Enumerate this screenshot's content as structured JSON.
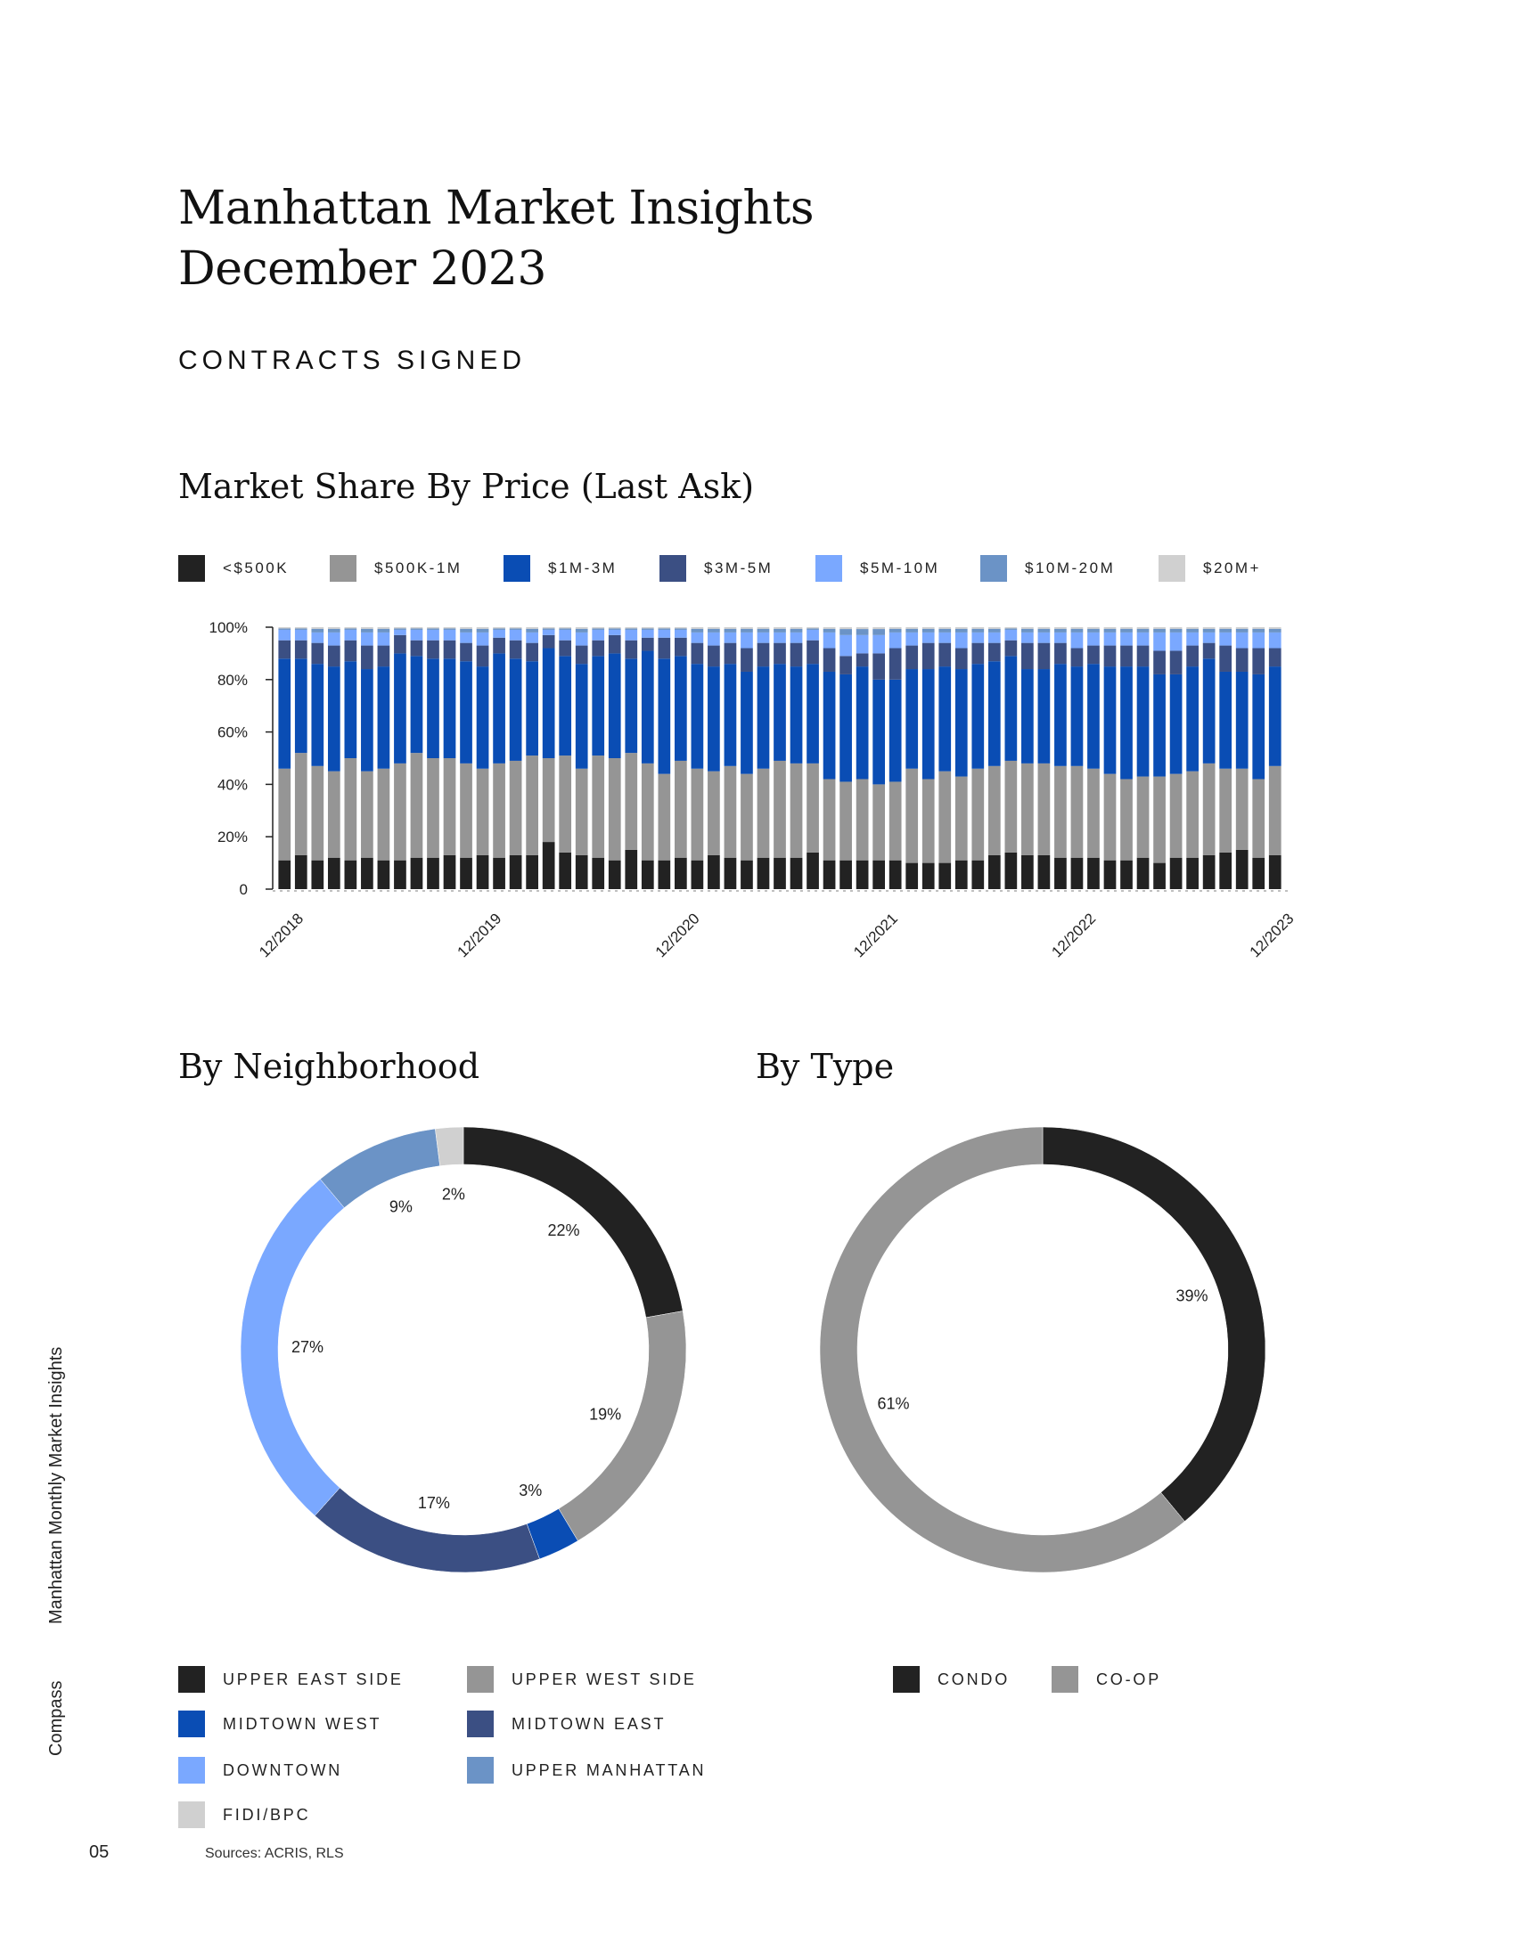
{
  "header": {
    "title_line1": "Manhattan Market Insights",
    "title_line2": "December 2023",
    "section": "CONTRACTS SIGNED"
  },
  "price_legend": [
    {
      "label": "<$500K",
      "color": "#222222"
    },
    {
      "label": "$500K-1M",
      "color": "#959595"
    },
    {
      "label": "$1M-3M",
      "color": "#0a4db4"
    },
    {
      "label": "$3M-5M",
      "color": "#3b4f83"
    },
    {
      "label": "$5M-10M",
      "color": "#7aa8ff"
    },
    {
      "label": "$10M-20M",
      "color": "#6b93c6"
    },
    {
      "label": "$20M+",
      "color": "#d0d0d0"
    }
  ],
  "neighborhood_legend": [
    {
      "label": "UPPER EAST SIDE",
      "color": "#222222"
    },
    {
      "label": "UPPER WEST SIDE",
      "color": "#959595"
    },
    {
      "label": "MIDTOWN WEST",
      "color": "#0a4db4"
    },
    {
      "label": "MIDTOWN EAST",
      "color": "#3b4f83"
    },
    {
      "label": "DOWNTOWN",
      "color": "#7aa8ff"
    },
    {
      "label": "UPPER MANHATTAN",
      "color": "#6b93c6"
    },
    {
      "label": "FIDI/BPC",
      "color": "#d0d0d0"
    }
  ],
  "type_legend": [
    {
      "label": "CONDO",
      "color": "#222222"
    },
    {
      "label": "CO-OP",
      "color": "#959595"
    }
  ],
  "sidebar": {
    "publication": "Manhattan Monthly Market Insights",
    "brand": "Compass"
  },
  "footer": {
    "page_number": "05",
    "sources": "Sources: ACRIS, RLS"
  },
  "chart_data": [
    {
      "type": "bar",
      "stacked": true,
      "title": "Market Share By Price (Last Ask)",
      "ylim": [
        0,
        100
      ],
      "y_ticks": [
        "0",
        "20%",
        "40%",
        "60%",
        "80%",
        "100%"
      ],
      "x_tick_labels": [
        "12/2018",
        "12/2019",
        "12/2020",
        "12/2021",
        "12/2022",
        "12/2023"
      ],
      "x_tick_positions": [
        0,
        12,
        24,
        36,
        48,
        60
      ],
      "series_names": [
        "<$500K",
        "$500K-1M",
        "$1M-3M",
        "$3M-5M",
        "$5M-10M",
        "$10M-20M",
        "$20M+"
      ],
      "cumulative": [
        [
          11,
          46,
          88,
          95,
          99,
          99.5,
          100
        ],
        [
          13,
          52,
          88,
          95,
          99,
          99.5,
          100
        ],
        [
          11,
          47,
          86,
          94,
          98,
          99.4,
          100
        ],
        [
          12,
          45,
          85,
          93,
          98,
          99.4,
          100
        ],
        [
          11,
          50,
          87,
          95,
          99,
          99.5,
          100
        ],
        [
          12,
          45,
          84,
          93,
          98,
          99.4,
          100
        ],
        [
          11,
          46,
          85,
          93,
          98,
          99.4,
          100
        ],
        [
          11,
          48,
          90,
          97,
          99,
          99.5,
          100
        ],
        [
          12,
          52,
          89,
          95,
          99,
          99.5,
          100
        ],
        [
          12,
          50,
          88,
          95,
          99,
          99.5,
          100
        ],
        [
          13,
          50,
          88,
          95,
          99,
          99.5,
          100
        ],
        [
          12,
          48,
          87,
          94,
          98,
          99.4,
          100
        ],
        [
          13,
          46,
          85,
          93,
          98,
          99.4,
          100
        ],
        [
          12,
          48,
          90,
          96,
          99,
          99.5,
          100
        ],
        [
          13,
          49,
          88,
          95,
          99,
          99.5,
          100
        ],
        [
          13,
          51,
          87,
          94,
          98,
          99.4,
          100
        ],
        [
          18,
          50,
          92,
          97,
          99,
          99.5,
          100
        ],
        [
          14,
          51,
          89,
          95,
          99,
          99.5,
          100
        ],
        [
          13,
          46,
          86,
          93,
          98,
          99.4,
          100
        ],
        [
          12,
          51,
          89,
          95,
          99,
          99.5,
          100
        ],
        [
          11,
          50,
          90,
          97,
          99,
          99.5,
          100
        ],
        [
          15,
          52,
          88,
          95,
          99,
          99.5,
          100
        ],
        [
          11,
          48,
          91,
          96,
          99,
          99.5,
          100
        ],
        [
          11,
          44,
          88,
          96,
          99,
          99.5,
          100
        ],
        [
          12,
          49,
          89,
          96,
          99,
          99.5,
          100
        ],
        [
          11,
          46,
          86,
          94,
          98,
          99.4,
          100
        ],
        [
          13,
          45,
          85,
          93,
          98,
          99.4,
          100
        ],
        [
          12,
          47,
          86,
          94,
          98,
          99.4,
          100
        ],
        [
          11,
          44,
          83,
          92,
          98,
          99.4,
          100
        ],
        [
          12,
          46,
          85,
          94,
          98,
          99.4,
          100
        ],
        [
          12,
          49,
          86,
          94,
          98,
          99.4,
          100
        ],
        [
          12,
          48,
          85,
          94,
          98,
          99.4,
          100
        ],
        [
          14,
          48,
          86,
          95,
          99,
          99.5,
          100
        ],
        [
          11,
          42,
          83,
          92,
          98,
          99.4,
          100
        ],
        [
          11,
          41,
          82,
          89,
          97,
          99.3,
          100
        ],
        [
          11,
          42,
          85,
          90,
          97,
          99.3,
          100
        ],
        [
          11,
          40,
          80,
          90,
          97,
          99.3,
          100
        ],
        [
          11,
          41,
          80,
          92,
          98,
          99.4,
          100
        ],
        [
          10,
          46,
          84,
          93,
          98,
          99.4,
          100
        ],
        [
          10,
          42,
          84,
          94,
          98,
          99.4,
          100
        ],
        [
          10,
          45,
          85,
          94,
          98,
          99.4,
          100
        ],
        [
          11,
          43,
          84,
          92,
          98,
          99.4,
          100
        ],
        [
          11,
          46,
          86,
          94,
          98,
          99.4,
          100
        ],
        [
          13,
          47,
          87,
          94,
          98,
          99.4,
          100
        ],
        [
          14,
          49,
          89,
          95,
          99,
          99.5,
          100
        ],
        [
          13,
          48,
          84,
          94,
          98,
          99.4,
          100
        ],
        [
          13,
          48,
          84,
          94,
          98,
          99.4,
          100
        ],
        [
          12,
          47,
          86,
          94,
          98,
          99.4,
          100
        ],
        [
          12,
          47,
          85,
          92,
          98,
          99.4,
          100
        ],
        [
          12,
          46,
          86,
          93,
          98,
          99.4,
          100
        ],
        [
          11,
          44,
          85,
          93,
          98,
          99.4,
          100
        ],
        [
          11,
          42,
          85,
          93,
          98,
          99.4,
          100
        ],
        [
          12,
          43,
          85,
          93,
          98,
          99.4,
          100
        ],
        [
          10,
          43,
          82,
          91,
          98,
          99.4,
          100
        ],
        [
          12,
          44,
          82,
          91,
          98,
          99.4,
          100
        ],
        [
          12,
          45,
          85,
          93,
          98,
          99.4,
          100
        ],
        [
          13,
          48,
          88,
          94,
          98,
          99.4,
          100
        ],
        [
          14,
          46,
          83,
          93,
          98,
          99.4,
          100
        ],
        [
          15,
          46,
          83,
          92,
          98,
          99.4,
          100
        ],
        [
          12,
          42,
          82,
          92,
          98,
          99.4,
          100
        ],
        [
          13,
          47,
          85,
          92,
          98,
          99.4,
          100
        ]
      ]
    },
    {
      "type": "pie",
      "donut": true,
      "title": "By Neighborhood",
      "labels": [
        "Upper East Side",
        "Upper West Side",
        "Midtown West",
        "Midtown East",
        "Downtown",
        "Upper Manhattan",
        "FiDi/BPC"
      ],
      "values": [
        22,
        19,
        3,
        17,
        27,
        9,
        2
      ],
      "value_labels": [
        "22%",
        "19%",
        "3%",
        "17%",
        "27%",
        "9%",
        "2%"
      ],
      "colors": [
        "#222222",
        "#959595",
        "#0a4db4",
        "#3b4f83",
        "#7aa8ff",
        "#6b93c6",
        "#d0d0d0"
      ]
    },
    {
      "type": "pie",
      "donut": true,
      "title": "By Type",
      "labels": [
        "Condo",
        "Co-op"
      ],
      "values": [
        39,
        61
      ],
      "value_labels": [
        "39%",
        "61%"
      ],
      "colors": [
        "#222222",
        "#959595"
      ]
    }
  ]
}
